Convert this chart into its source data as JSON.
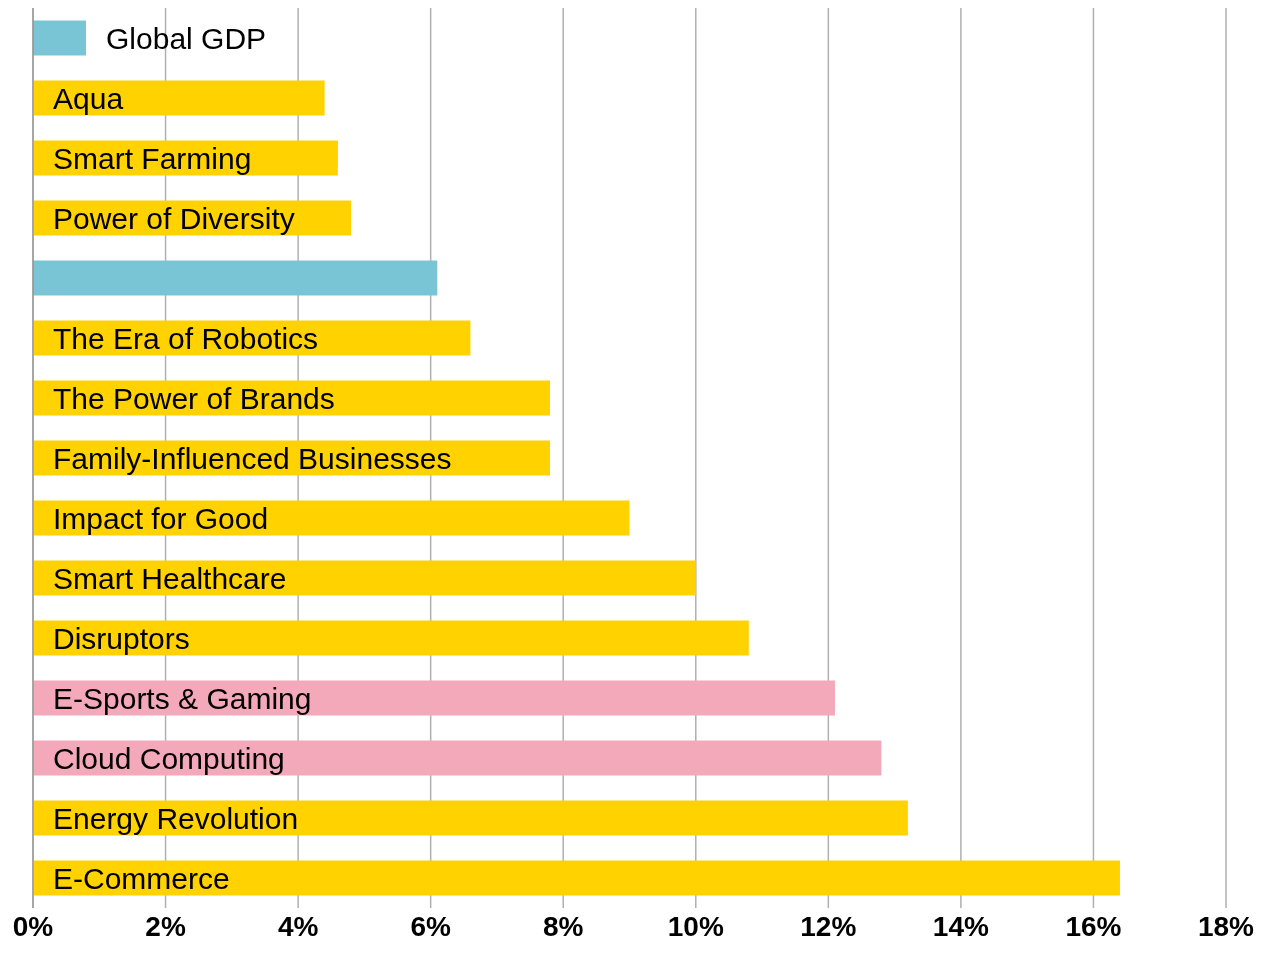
{
  "chart_data": {
    "type": "bar",
    "orientation": "horizontal",
    "categories": [
      "Global GDP",
      "Aqua",
      "Smart Farming",
      "Power of Diversity",
      null,
      "The Era of Robotics",
      "The Power of Brands",
      "Family-Influenced Businesses",
      "Impact for Good",
      "Smart Healthcare",
      "Disruptors",
      "E-Sports & Gaming",
      "Cloud Computing",
      "Energy Revolution",
      "E-Commerce"
    ],
    "values": [
      0.8,
      4.4,
      4.6,
      4.8,
      6.1,
      6.6,
      7.8,
      7.8,
      9.0,
      10.0,
      10.8,
      12.1,
      12.8,
      13.2,
      16.4
    ],
    "colors": [
      "#7ac5d5",
      "#ffd200",
      "#ffd200",
      "#ffd200",
      "#7ac5d5",
      "#ffd200",
      "#ffd200",
      "#ffd200",
      "#ffd200",
      "#ffd200",
      "#ffd200",
      "#f4a9bb",
      "#f4a9bb",
      "#ffd200",
      "#ffd200"
    ],
    "xlim": [
      0,
      18
    ],
    "xticks": [
      {
        "value": 0,
        "label": "0%"
      },
      {
        "value": 2,
        "label": "2%"
      },
      {
        "value": 4,
        "label": "4%"
      },
      {
        "value": 6,
        "label": "6%"
      },
      {
        "value": 8,
        "label": "8%"
      },
      {
        "value": 10,
        "label": "10%"
      },
      {
        "value": 12,
        "label": "12%"
      },
      {
        "value": 14,
        "label": "14%"
      },
      {
        "value": 16,
        "label": "16%"
      },
      {
        "value": 18,
        "label": "18%"
      }
    ],
    "grid": "x"
  }
}
